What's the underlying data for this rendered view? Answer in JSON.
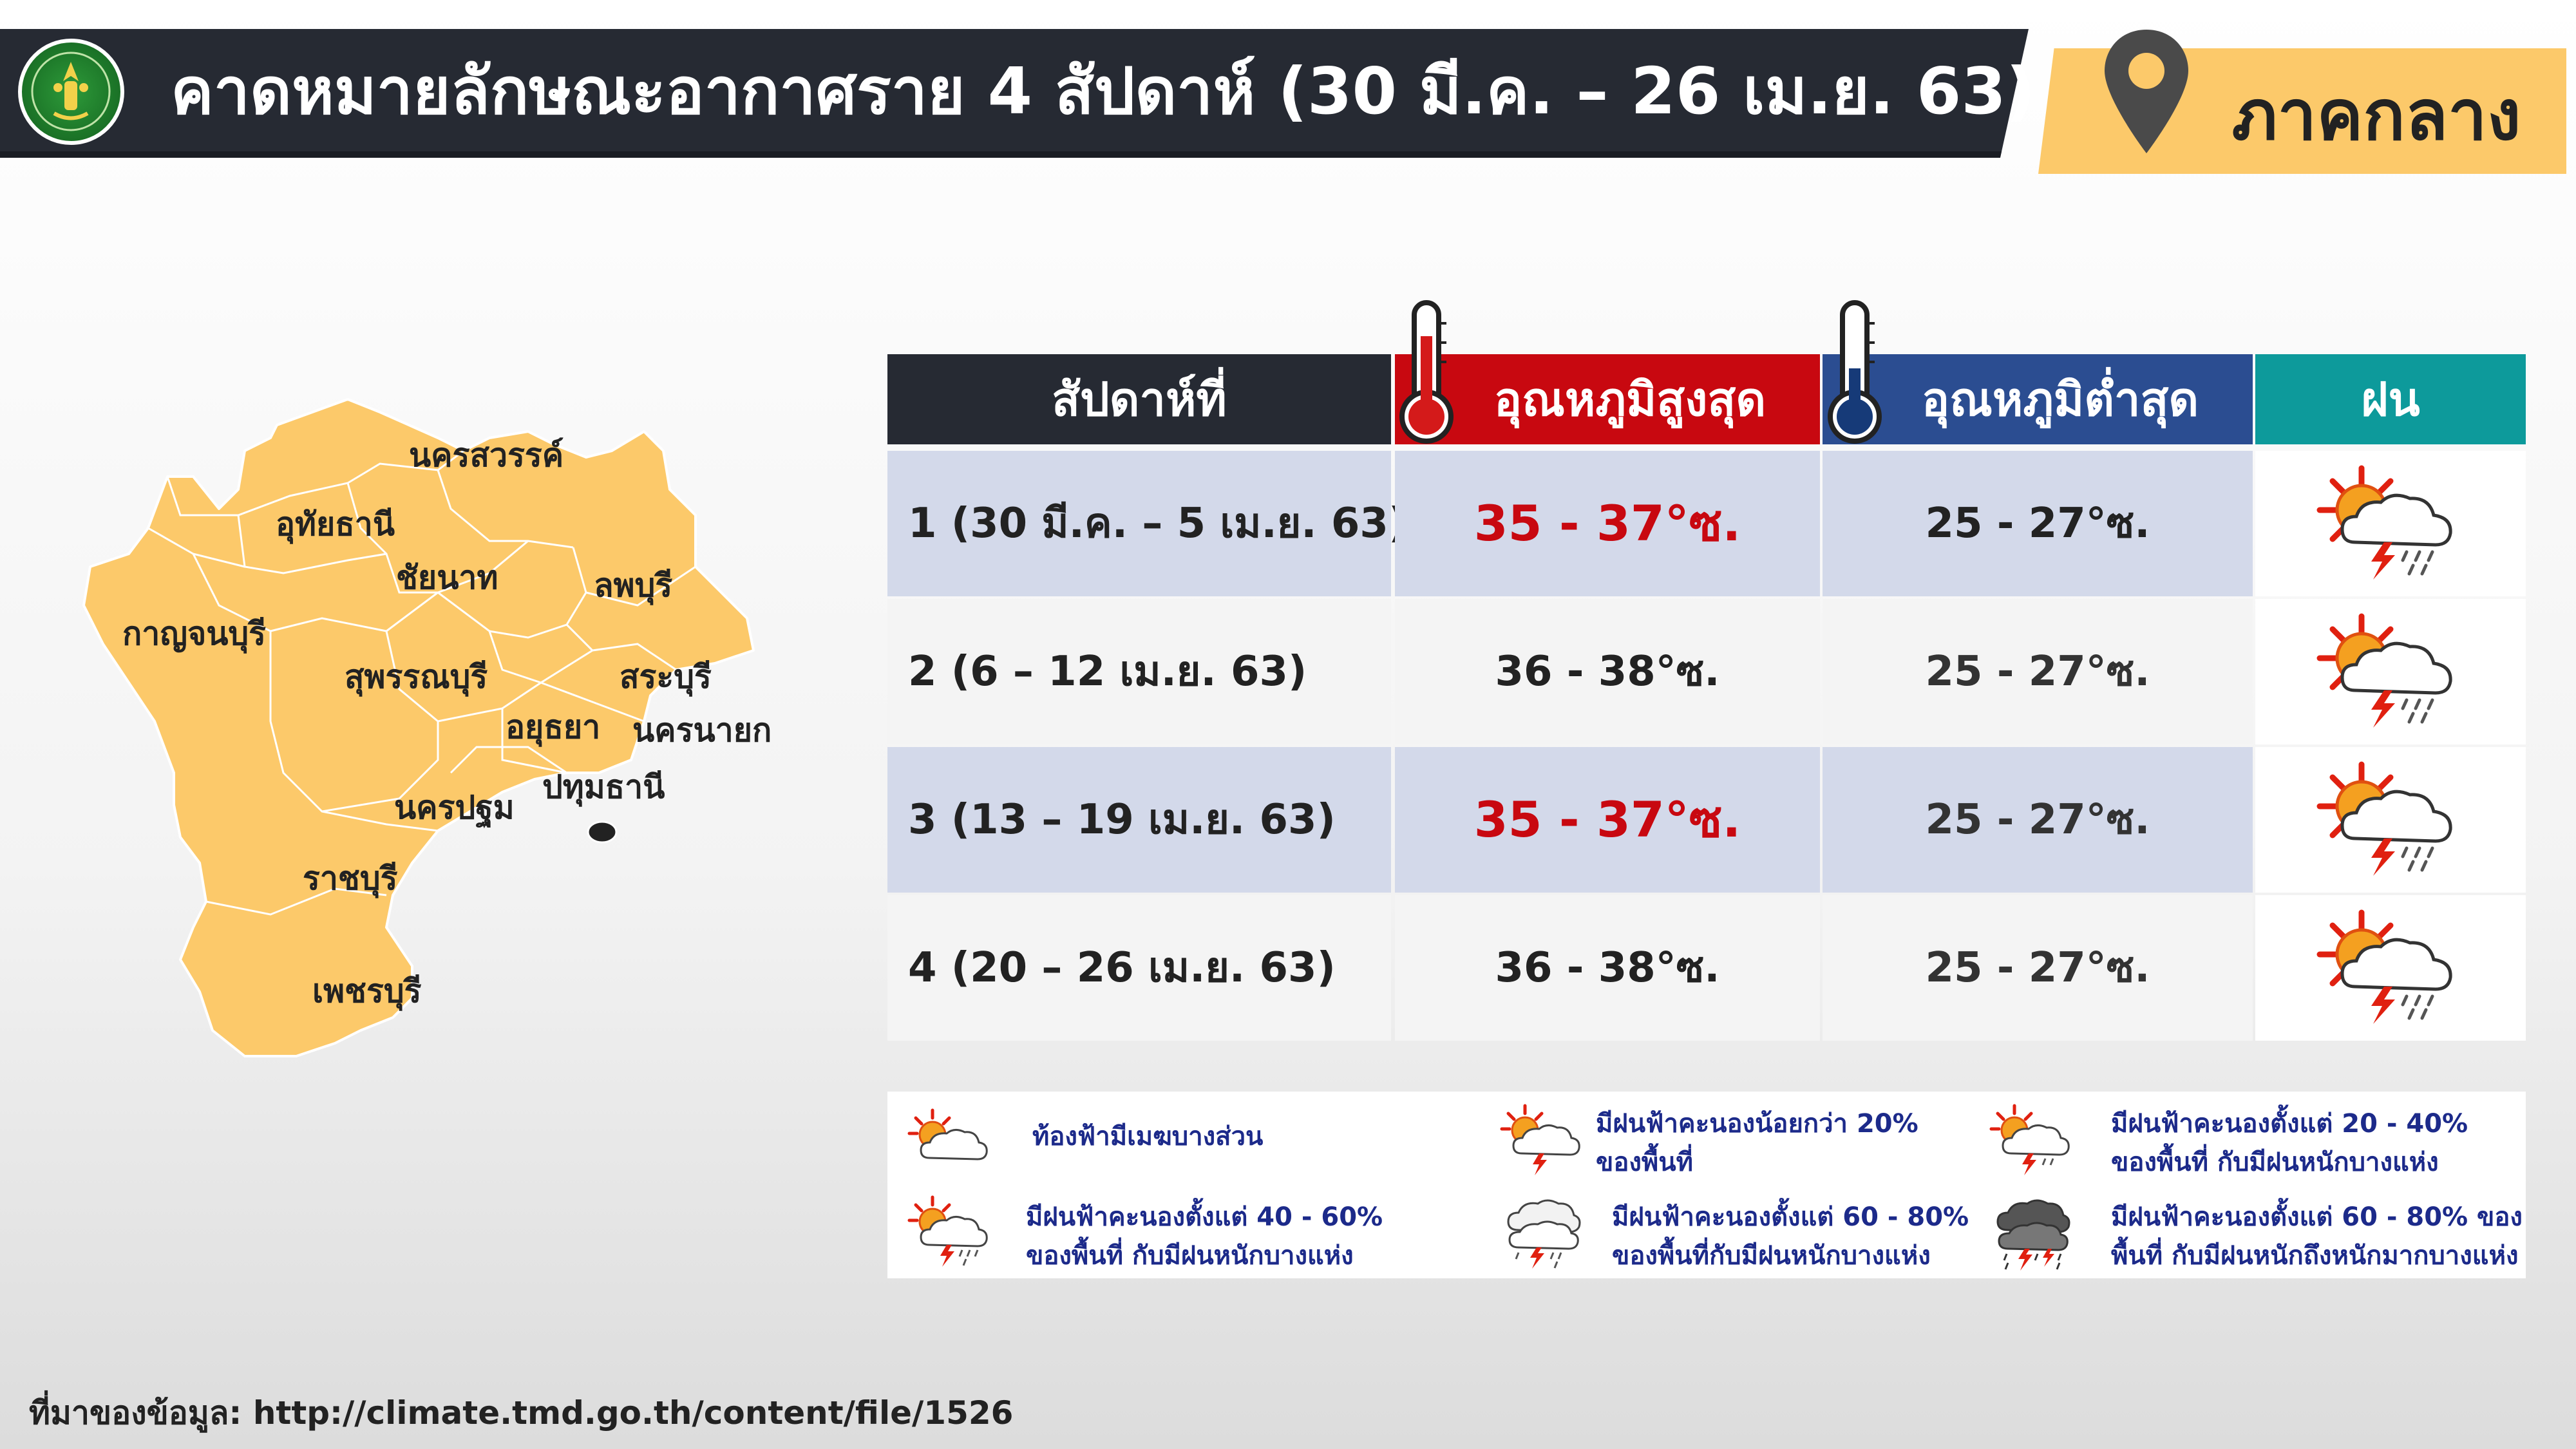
{
  "header": {
    "title": "คาดหมายลักษณะอากาศราย 4 สัปดาห์ (30 มี.ค. – 26 เม.ย. 63)",
    "region": "ภาคกลาง",
    "logo_icon": "tmd-logo-icon",
    "pin_icon": "location-pin-icon"
  },
  "map": {
    "provinces": [
      "นครสวรรค์",
      "อุทัยธานี",
      "ชัยนาท",
      "ลพบุรี",
      "กาญจนบุรี",
      "สุพรรณบุรี",
      "สระบุรี",
      "อยุธยา",
      "นครนายก",
      "ปทุมธานี",
      "นครปฐม",
      "ราชบุรี",
      "เพชรบุรี"
    ],
    "fill_color": "#fcc96a"
  },
  "table": {
    "headers": {
      "week": "สัปดาห์ที่",
      "max_temp": "อุณหภูมิสูงสุด",
      "min_temp": "อุณหภูมิต่ำสุด",
      "rain": "ฝน"
    },
    "rows": [
      {
        "week": "1 (30 มี.ค. – 5 เม.ย. 63)",
        "max": "35 - 37°ซ.",
        "min": "25 - 27°ซ.",
        "rain_icon": "thunderstorm-sun-icon"
      },
      {
        "week": "2 (6 – 12 เม.ย. 63)",
        "max": "36 - 38°ซ.",
        "min": "25 - 27°ซ.",
        "rain_icon": "thunderstorm-sun-icon"
      },
      {
        "week": "3 (13 – 19 เม.ย. 63)",
        "max": "35 - 37°ซ.",
        "min": "25 - 27°ซ.",
        "rain_icon": "thunderstorm-sun-icon"
      },
      {
        "week": "4 (20 – 26 เม.ย. 63)",
        "max": "36 - 38°ซ.",
        "min": "25 - 27°ซ.",
        "rain_icon": "thunderstorm-sun-icon"
      }
    ],
    "colors": {
      "max_header": "#c80810",
      "min_header": "#2b4d91",
      "rain_header": "#0d9a9b",
      "week_header": "#262a33",
      "hot_text": "#c80810"
    }
  },
  "legend": {
    "items": [
      {
        "line1": "ท้องฟ้ามีเมฆบางส่วน",
        "line2": "",
        "icon": "partly-cloudy-icon"
      },
      {
        "line1": "มีฝนฟ้าคะนองน้อยกว่า 20%",
        "line2": "ของพื้นที่",
        "icon": "thunderstorm-light-icon"
      },
      {
        "line1": "มีฝนฟ้าคะนองตั้งแต่ 20 - 40%",
        "line2": "ของพื้นที่ กับมีฝนหนักบางแห่ง",
        "icon": "thunderstorm-sun-light-icon"
      },
      {
        "line1": "มีฝนฟ้าคะนองตั้งแต่ 40 - 60%",
        "line2": "ของพื้นที่ กับมีฝนหนักบางแห่ง",
        "icon": "thunderstorm-sun-icon"
      },
      {
        "line1": "มีฝนฟ้าคะนองตั้งแต่ 60 - 80%",
        "line2": "ของพื้นที่กับมีฝนหนักบางแห่ง",
        "icon": "thunderstorm-cloud-icon"
      },
      {
        "line1": "มีฝนฟ้าคะนองตั้งแต่ 60 - 80% ของ",
        "line2": "พื้นที่ กับมีฝนหนักถึงหนักมากบางแห่ง",
        "icon": "thunderstorm-heavy-icon"
      }
    ]
  },
  "source": "ที่มาของข้อมูล: http://climate.tmd.go.th/content/file/1526"
}
